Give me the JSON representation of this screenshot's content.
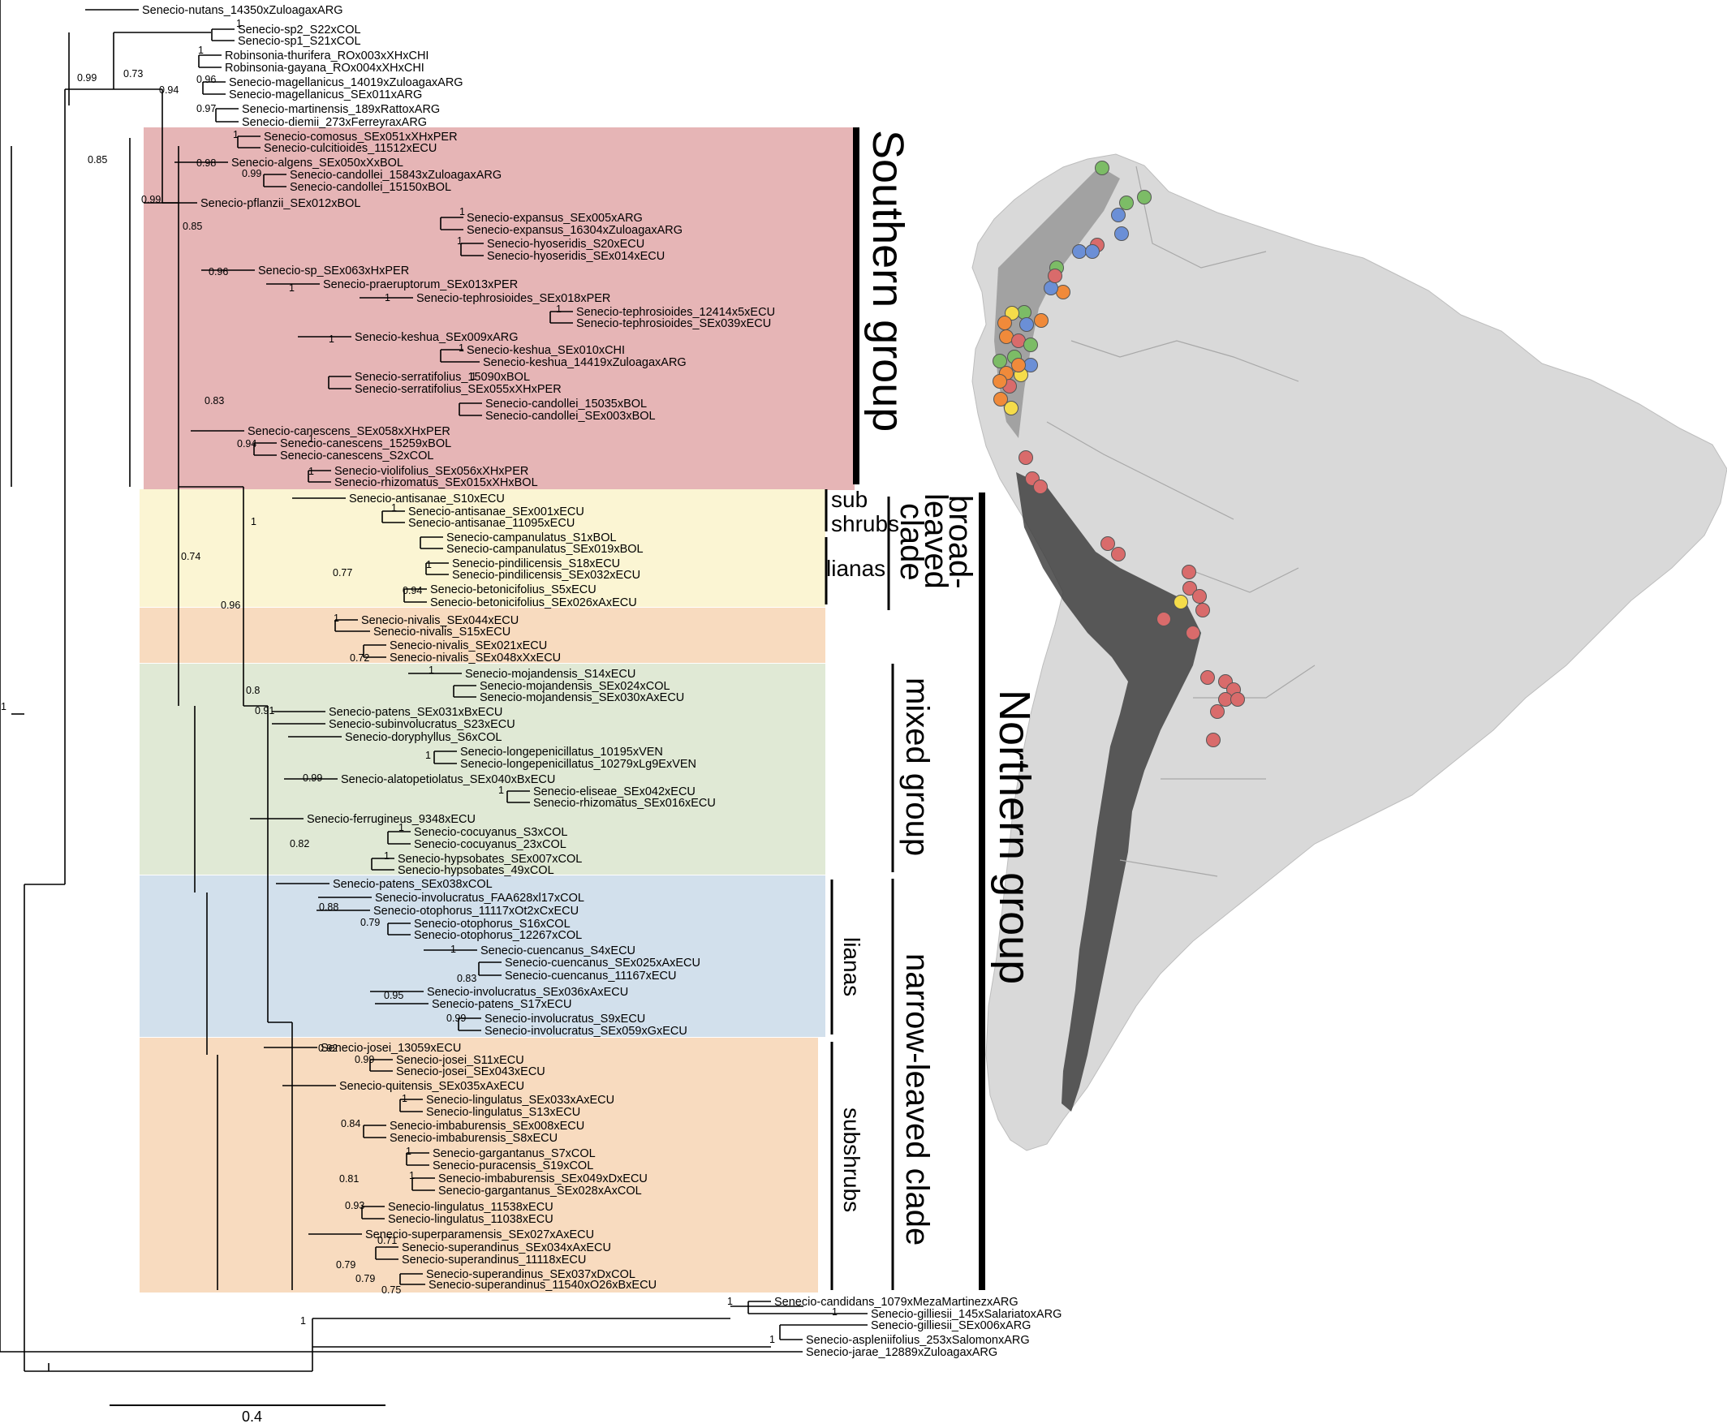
{
  "scale_bar_label": "0.4",
  "root_label": "1",
  "colors": {
    "southern": "#e6b5b6",
    "broad": "#fbf5d3",
    "orange": "#f8dbbf",
    "mixed": "#e0e9d5",
    "lianas": "#d2e0ec",
    "branch": "#000000",
    "site_red": "#d96b6b",
    "site_green": "#7cbc66",
    "site_blue": "#6b8fd6",
    "site_orange": "#f08a3a",
    "site_yellow": "#f5dc4a"
  },
  "groups": {
    "southern": "Southern group",
    "northern": "Northern group",
    "broad_leaved": [
      "broad-",
      "leaved",
      "clade"
    ],
    "mixed": "mixed group",
    "narrow_leaved": "narrow-leaved clade",
    "sub_shrubs_top": [
      "sub",
      "shrubs"
    ],
    "lianas_top": "lianas",
    "lianas_mid": "lianas",
    "subshrubs_bottom": "subshrubs"
  },
  "tips": [
    "Senecio-nutans_14350xZuloagaxARG",
    "Senecio-sp2_S22xCOL",
    "Senecio-sp1_S21xCOL",
    "Robinsonia-thurifera_ROx003xXHxCHI",
    "Robinsonia-gayana_ROx004xXHxCHI",
    "Senecio-magellanicus_14019xZuloagaxARG",
    "Senecio-magellanicus_SEx011xARG",
    "Senecio-martinensis_189xRattoxARG",
    "Senecio-diemii_273xFerreyraxARG",
    "Senecio-comosus_SEx051xXHxPER",
    "Senecio-culcitioides_11512xECU",
    "Senecio-algens_SEx050xXxBOL",
    "Senecio-candollei_15843xZuloagaxARG",
    "Senecio-candollei_15150xBOL",
    "Senecio-pflanzii_SEx012xBOL",
    "Senecio-expansus_SEx005xARG",
    "Senecio-expansus_16304xZuloagaxARG",
    "Senecio-hyoseridis_S20xECU",
    "Senecio-hyoseridis_SEx014xECU",
    "Senecio-sp_SEx063xHxPER",
    "Senecio-praeruptorum_SEx013xPER",
    "Senecio-tephrosioides_SEx018xPER",
    "Senecio-tephrosioides_12414x5xECU",
    "Senecio-tephrosioides_SEx039xECU",
    "Senecio-keshua_SEx009xARG",
    "Senecio-keshua_SEx010xCHI",
    "Senecio-keshua_14419xZuloagaxARG",
    "Senecio-serratifolius_15090xBOL",
    "Senecio-serratifolius_SEx055xXHxPER",
    "Senecio-candollei_15035xBOL",
    "Senecio-candollei_SEx003xBOL",
    "Senecio-canescens_SEx058xXHxPER",
    "Senecio-canescens_15259xBOL",
    "Senecio-canescens_S2xCOL",
    "Senecio-violifolius_SEx056xXHxPER",
    "Senecio-rhizomatus_SEx015xXHxBOL",
    "Senecio-antisanae_S10xECU",
    "Senecio-antisanae_SEx001xECU",
    "Senecio-antisanae_11095xECU",
    "Senecio-campanulatus_S1xBOL",
    "Senecio-campanulatus_SEx019xBOL",
    "Senecio-pindilicensis_S18xECU",
    "Senecio-pindilicensis_SEx032xECU",
    "Senecio-betonicifolius_S5xECU",
    "Senecio-betonicifolius_SEx026xAxECU",
    "Senecio-nivalis_SEx044xECU",
    "Senecio-nivalis_S15xECU",
    "Senecio-nivalis_SEx021xECU",
    "Senecio-nivalis_SEx048xXxECU",
    "Senecio-mojandensis_S14xECU",
    "Senecio-mojandensis_SEx024xCOL",
    "Senecio-mojandensis_SEx030xAxECU",
    "Senecio-patens_SEx031xBxECU",
    "Senecio-subinvolucratus_S23xECU",
    "Senecio-doryphyllus_S6xCOL",
    "Senecio-longepenicillatus_10195xVEN",
    "Senecio-longepenicillatus_10279xLg9ExVEN",
    "Senecio-alatopetiolatus_SEx040xBxECU",
    "Senecio-eliseae_SEx042xECU",
    "Senecio-rhizomatus_SEx016xECU",
    "Senecio-ferrugineus_9348xECU",
    "Senecio-cocuyanus_S3xCOL",
    "Senecio-cocuyanus_23xCOL",
    "Senecio-hypsobates_SEx007xCOL",
    "Senecio-hypsobates_49xCOL",
    "Senecio-patens_SEx038xCOL",
    "Senecio-involucratus_FAA628xl17xCOL",
    "Senecio-otophorus_11117xOt2xCxECU",
    "Senecio-otophorus_S16xCOL",
    "Senecio-otophorus_12267xCOL",
    "Senecio-cuencanus_S4xECU",
    "Senecio-cuencanus_SEx025xAxECU",
    "Senecio-cuencanus_11167xECU",
    "Senecio-involucratus_SEx036xAxECU",
    "Senecio-patens_S17xECU",
    "Senecio-involucratus_S9xECU",
    "Senecio-involucratus_SEx059xGxECU",
    "Senecio-josei_13059xECU",
    "Senecio-josei_S11xECU",
    "Senecio-josei_SEx043xECU",
    "Senecio-quitensis_SEx035xAxECU",
    "Senecio-lingulatus_SEx033xAxECU",
    "Senecio-lingulatus_S13xECU",
    "Senecio-imbaburensis_SEx008xECU",
    "Senecio-imbaburensis_S8xECU",
    "Senecio-gargantanus_S7xCOL",
    "Senecio-puracensis_S19xCOL",
    "Senecio-imbaburensis_SEx049xDxECU",
    "Senecio-gargantanus_SEx028xAxCOL",
    "Senecio-lingulatus_11538xECU",
    "Senecio-lingulatus_11038xECU",
    "Senecio-superparamensis_SEx027xAxECU",
    "Senecio-superandinus_SEx034xAxECU",
    "Senecio-superandinus_11118xECU",
    "Senecio-superandinus_SEx037xDxCOL",
    "Senecio-superandinus_11540xO26xBxECU",
    "Senecio-candidans_1079xMezaMartinezxARG",
    "Senecio-gilliesii_145xSalariatoxARG",
    "Senecio-gilliesii_SEx006xARG",
    "Senecio-aspleniifolius_253xSalomonxARG",
    "Senecio-jarae_12889xZuloagaxARG"
  ],
  "supports": [
    "1",
    "0.99",
    "0.73",
    "1",
    "0.94",
    "0.96",
    "0.97",
    "0.85",
    "0.99",
    "1",
    "0.98",
    "0.99",
    "0.85",
    "1",
    "1",
    "0.96",
    "1",
    "1",
    "1",
    "1",
    "1",
    "1",
    "0.83",
    "0.94",
    "1",
    "1",
    "0.74",
    "1",
    "1",
    "0.77",
    "1",
    "0.94",
    "0.96",
    "1",
    "0.72",
    "0.8",
    "1",
    "0.91",
    "1",
    "0.99",
    "1",
    "1",
    "0.82",
    "1",
    "0.88",
    "0.79",
    "1",
    "0.83",
    "0.95",
    "0.99",
    "0.92",
    "0.99",
    "1",
    "0.84",
    "1",
    "0.81",
    "1",
    "0.93",
    "0.71",
    "0.79",
    "0.79",
    "0.75",
    "1",
    "1",
    "1",
    "1"
  ]
}
